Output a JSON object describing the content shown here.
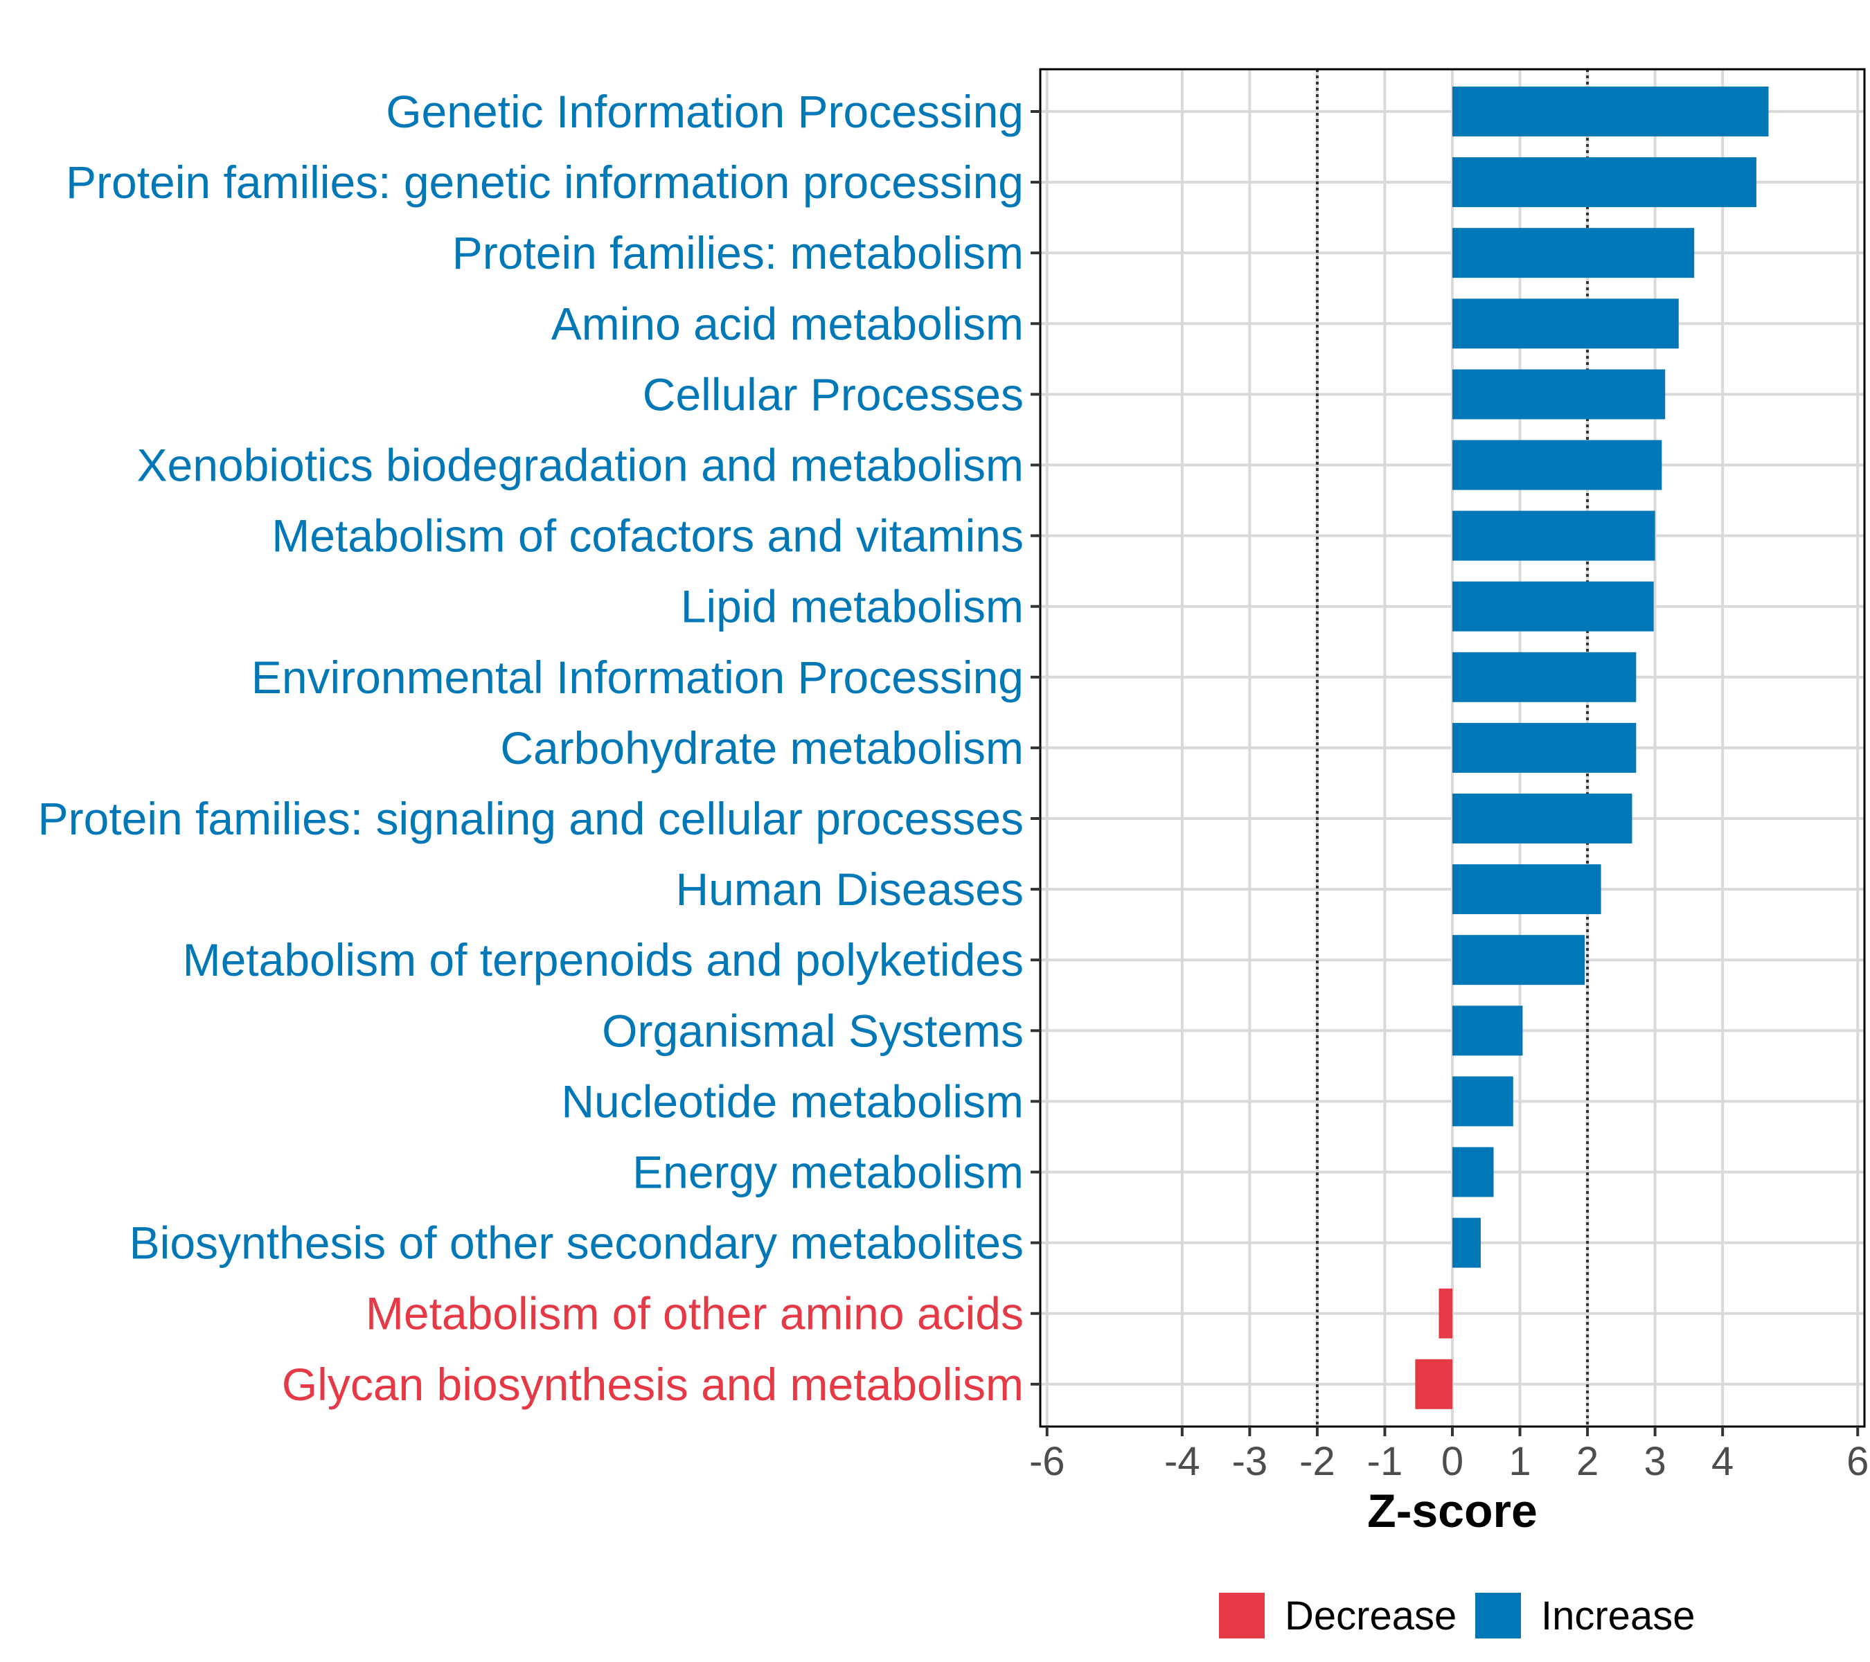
{
  "chart_data": {
    "type": "bar",
    "orientation": "horizontal",
    "title": "",
    "xlabel": "Z-score",
    "ylabel": "",
    "xlim": [
      -6.1,
      6.1
    ],
    "xticks": [
      -6,
      -4,
      -3,
      -2,
      -1,
      0,
      1,
      2,
      3,
      4,
      6
    ],
    "reference_lines": [
      -2,
      2
    ],
    "grid": true,
    "legend_position": "bottom",
    "colors": {
      "Decrease": "#E63946",
      "Increase": "#0077B6"
    },
    "categories": [
      "Genetic Information Processing",
      "Protein families: genetic information processing",
      "Protein families: metabolism",
      "Amino acid metabolism",
      "Cellular Processes",
      "Xenobiotics biodegradation and metabolism",
      "Metabolism of cofactors and vitamins",
      "Lipid metabolism",
      "Environmental Information Processing",
      "Carbohydrate metabolism",
      "Protein families: signaling and cellular processes",
      "Human Diseases",
      "Metabolism of terpenoids and polyketides",
      "Organismal Systems",
      "Nucleotide metabolism",
      "Energy metabolism",
      "Biosynthesis of other secondary metabolites",
      "Metabolism of other amino acids",
      "Glycan biosynthesis and metabolism"
    ],
    "values": [
      4.68,
      4.5,
      3.58,
      3.35,
      3.15,
      3.1,
      3.0,
      2.98,
      2.72,
      2.72,
      2.66,
      2.2,
      1.96,
      1.04,
      0.9,
      0.61,
      0.42,
      -0.2,
      -0.55
    ],
    "groups": [
      "Increase",
      "Increase",
      "Increase",
      "Increase",
      "Increase",
      "Increase",
      "Increase",
      "Increase",
      "Increase",
      "Increase",
      "Increase",
      "Increase",
      "Increase",
      "Increase",
      "Increase",
      "Increase",
      "Increase",
      "Decrease",
      "Decrease"
    ],
    "legend": [
      {
        "name": "Decrease",
        "color": "#E63946"
      },
      {
        "name": "Increase",
        "color": "#0077B6"
      }
    ]
  }
}
